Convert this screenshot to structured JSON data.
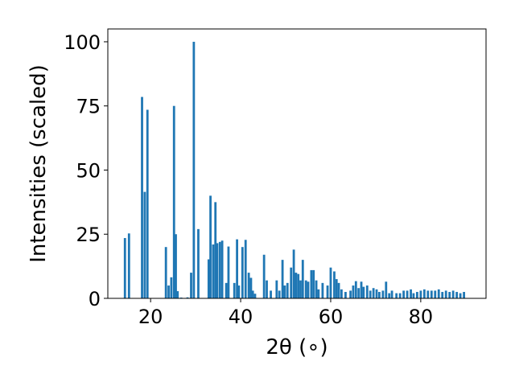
{
  "chart_data": {
    "type": "bar",
    "title": "",
    "xlabel": "2θ (∘)",
    "ylabel": "Intensities (scaled)",
    "xlim": [
      10.5,
      94.5
    ],
    "ylim": [
      0,
      105
    ],
    "xticks": [
      20,
      40,
      60,
      80
    ],
    "yticks": [
      0,
      25,
      50,
      75,
      100
    ],
    "bar_width": 0.5,
    "color": "#1f77b4",
    "grid": false,
    "legend": "none",
    "x": [
      14.3,
      15.2,
      18.1,
      18.7,
      19.3,
      23.4,
      24.0,
      24.6,
      25.2,
      25.6,
      26.0,
      26.8,
      28.2,
      29.0,
      29.6,
      30.6,
      32.9,
      33.3,
      33.9,
      34.4,
      34.8,
      35.4,
      35.9,
      36.8,
      37.3,
      38.6,
      39.2,
      39.6,
      40.4,
      41.1,
      41.8,
      42.3,
      42.7,
      43.2,
      45.2,
      45.8,
      46.7,
      48.0,
      48.6,
      49.3,
      49.8,
      50.4,
      51.2,
      51.8,
      52.3,
      52.8,
      53.3,
      53.8,
      54.5,
      55.0,
      55.7,
      56.2,
      56.8,
      57.3,
      58.2,
      59.3,
      60.0,
      60.8,
      61.3,
      61.8,
      62.4,
      63.3,
      64.4,
      65.0,
      65.6,
      66.2,
      66.8,
      67.3,
      68.1,
      68.8,
      69.5,
      70.2,
      70.8,
      71.6,
      72.3,
      73.0,
      73.6,
      74.6,
      75.4,
      76.2,
      77.0,
      77.8,
      78.4,
      79.2,
      80.0,
      80.8,
      81.6,
      82.4,
      83.2,
      84.0,
      84.8,
      85.6,
      86.4,
      87.2,
      88.0,
      88.8,
      89.6
    ],
    "values": [
      23.5,
      25.3,
      78.5,
      41.5,
      73.5,
      20.0,
      5.0,
      8.2,
      75.0,
      25.0,
      2.8,
      0.3,
      0.4,
      10.0,
      100.0,
      27.0,
      15.2,
      40.0,
      21.0,
      37.5,
      21.5,
      22.0,
      22.5,
      6.0,
      20.2,
      6.0,
      23.0,
      5.0,
      20.0,
      22.8,
      10.0,
      8.0,
      3.0,
      1.8,
      17.0,
      7.0,
      3.0,
      7.0,
      3.0,
      15.0,
      5.0,
      6.0,
      12.0,
      19.0,
      10.0,
      9.5,
      7.0,
      15.0,
      7.0,
      6.5,
      11.0,
      11.0,
      7.0,
      3.5,
      6.0,
      5.0,
      12.0,
      10.5,
      7.5,
      6.0,
      3.5,
      2.5,
      3.0,
      5.0,
      6.7,
      4.0,
      6.5,
      4.5,
      5.0,
      3.0,
      4.0,
      3.5,
      2.5,
      3.0,
      6.5,
      2.0,
      3.0,
      2.0,
      2.0,
      3.0,
      3.0,
      3.5,
      2.0,
      2.5,
      3.0,
      3.5,
      3.0,
      3.0,
      3.0,
      3.5,
      2.5,
      3.0,
      2.5,
      3.0,
      2.5,
      2.0,
      2.5
    ]
  }
}
